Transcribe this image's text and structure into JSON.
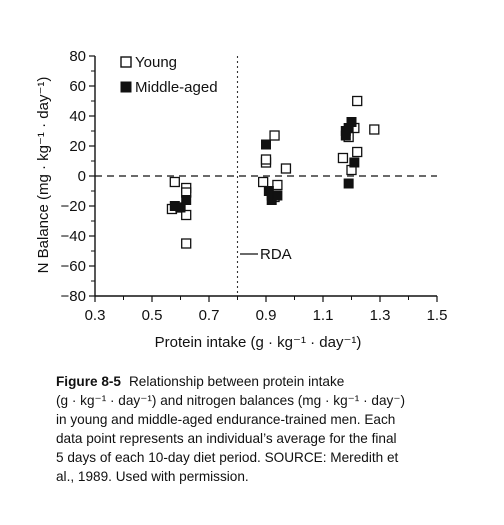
{
  "chart_data": {
    "type": "scatter",
    "xlabel": "Protein intake (g · kg⁻¹ · day⁻¹)",
    "ylabel": "N Balance (mg · kg⁻¹ · day⁻¹)",
    "xlim": [
      0.3,
      1.5
    ],
    "ylim": [
      -80,
      80
    ],
    "x_ticks": [
      "0.3",
      "0.5",
      "0.7",
      "0.9",
      "1.1",
      "1.3",
      "1.5"
    ],
    "y_ticks": [
      "80",
      "60",
      "40",
      "20",
      "0",
      "−20",
      "−40",
      "−60",
      "−80"
    ],
    "legend_position": "top-left",
    "reference_lines": [
      {
        "axis": "y",
        "value": 0,
        "style": "dashed"
      },
      {
        "axis": "x",
        "value": 0.8,
        "style": "dotted",
        "label": "RDA"
      }
    ],
    "series": [
      {
        "name": "Young",
        "marker": "open-square",
        "points": [
          [
            0.58,
            -4
          ],
          [
            0.57,
            -22
          ],
          [
            0.6,
            -21
          ],
          [
            0.62,
            -8
          ],
          [
            0.62,
            -11
          ],
          [
            0.62,
            -26
          ],
          [
            0.62,
            -45
          ],
          [
            0.89,
            -4
          ],
          [
            0.9,
            9
          ],
          [
            0.9,
            11
          ],
          [
            0.93,
            27
          ],
          [
            0.94,
            -6
          ],
          [
            0.93,
            -14
          ],
          [
            0.97,
            5
          ],
          [
            1.17,
            12
          ],
          [
            1.19,
            26
          ],
          [
            1.2,
            4
          ],
          [
            1.21,
            32
          ],
          [
            1.22,
            50
          ],
          [
            1.22,
            16
          ],
          [
            1.28,
            31
          ]
        ]
      },
      {
        "name": "Middle-aged",
        "marker": "filled-square",
        "points": [
          [
            0.58,
            -20
          ],
          [
            0.6,
            -21
          ],
          [
            0.62,
            -16
          ],
          [
            0.9,
            21
          ],
          [
            0.91,
            -10
          ],
          [
            0.92,
            -13
          ],
          [
            0.92,
            -16
          ],
          [
            0.94,
            -13
          ],
          [
            1.18,
            27
          ],
          [
            1.18,
            30
          ],
          [
            1.19,
            32
          ],
          [
            1.2,
            36
          ],
          [
            1.21,
            9
          ],
          [
            1.19,
            -5
          ]
        ]
      }
    ]
  },
  "rda_label": "RDA",
  "caption": {
    "figure_label": "Figure 8-5",
    "lines": [
      "Relationship between protein intake",
      "(g · kg⁻¹ · day⁻¹) and nitrogen balances (mg · kg⁻¹ · day⁻)",
      "in young and middle-aged endurance-trained men. Each",
      "data point represents an individual’s average for the final",
      "5 days of each 10-day diet period. SOURCE: Meredith et",
      "al., 1989. Used with permission."
    ]
  }
}
